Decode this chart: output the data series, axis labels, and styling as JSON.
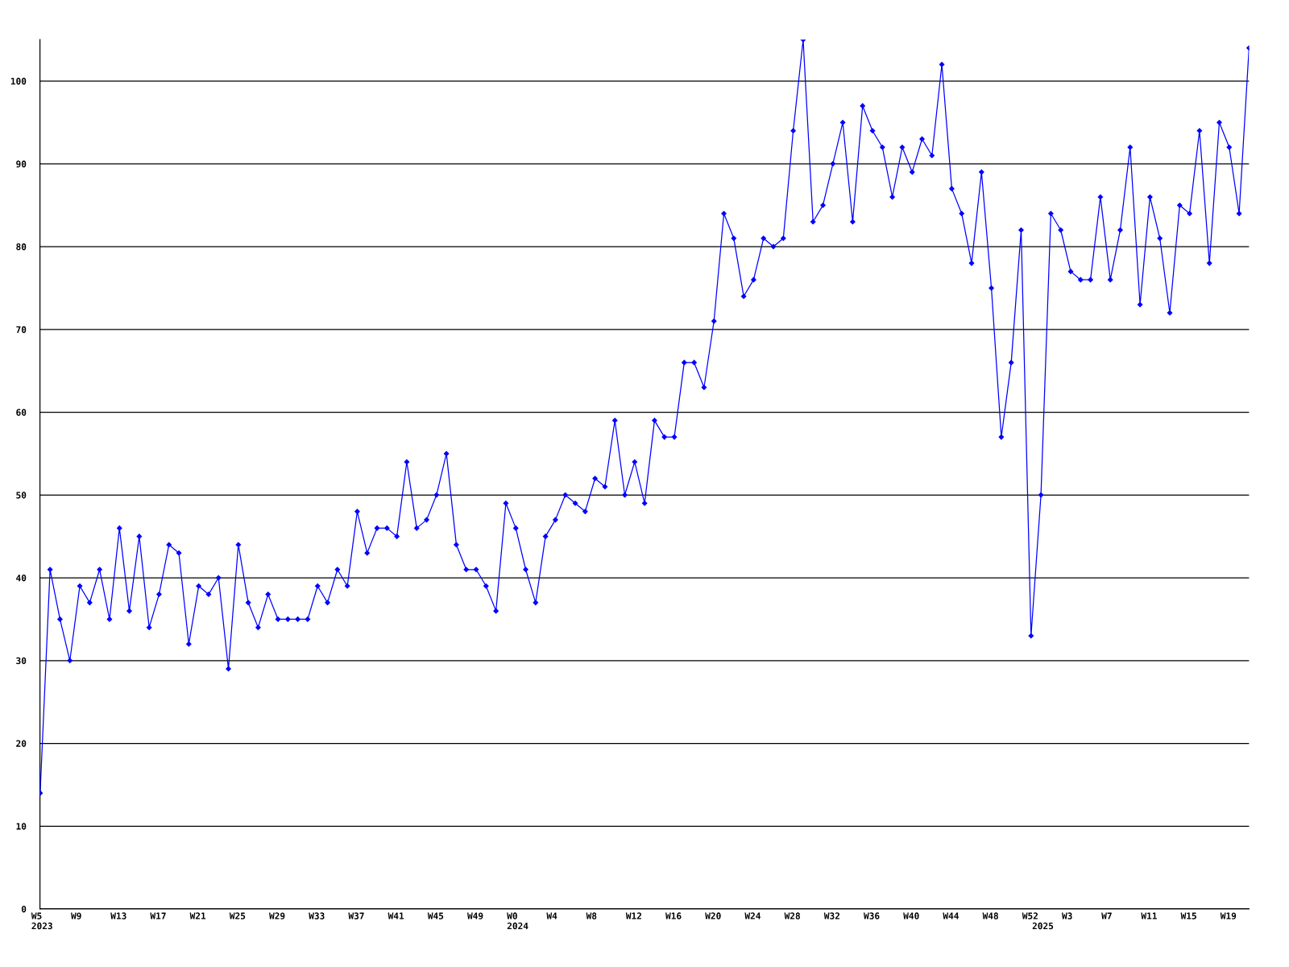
{
  "chart_data": {
    "type": "line",
    "categories": [
      "W5\n2023",
      null,
      null,
      null,
      "W9",
      null,
      null,
      null,
      "W13",
      null,
      null,
      null,
      "W17",
      null,
      null,
      null,
      "W21",
      null,
      null,
      null,
      "W25",
      null,
      null,
      null,
      "W29",
      null,
      null,
      null,
      "W33",
      null,
      null,
      null,
      "W37",
      null,
      null,
      null,
      "W41",
      null,
      null,
      null,
      "W45",
      null,
      null,
      null,
      "W49",
      null,
      null,
      null,
      "W0\n2024",
      null,
      null,
      null,
      "W4",
      null,
      null,
      null,
      "W8",
      null,
      null,
      null,
      "W12",
      null,
      null,
      null,
      "W16",
      null,
      null,
      null,
      "W20",
      null,
      null,
      null,
      "W24",
      null,
      null,
      null,
      "W28",
      null,
      null,
      null,
      "W32",
      null,
      null,
      null,
      "W36",
      null,
      null,
      null,
      "W40",
      null,
      null,
      null,
      "W44",
      null,
      null,
      null,
      "W48",
      null,
      null,
      null,
      "W52",
      "\n2025",
      null,
      null,
      "W3",
      null,
      null,
      null,
      "W7",
      null,
      null,
      null,
      "W11",
      null,
      null,
      null,
      "W15",
      null,
      null,
      null,
      "W19",
      null,
      null
    ],
    "series": [
      {
        "color": "#0000ff",
        "values": [
          14,
          41,
          35,
          30,
          39,
          37,
          41,
          35,
          46,
          36,
          45,
          34,
          38,
          44,
          43,
          32,
          39,
          38,
          40,
          29,
          44,
          37,
          34,
          38,
          35,
          35,
          35,
          35,
          39,
          37,
          41,
          39,
          48,
          43,
          46,
          46,
          45,
          54,
          46,
          47,
          50,
          55,
          44,
          41,
          41,
          39,
          36,
          49,
          46,
          41,
          37,
          45,
          47,
          50,
          49,
          48,
          52,
          51,
          59,
          50,
          54,
          49,
          59,
          57,
          57,
          66,
          66,
          63,
          71,
          84,
          81,
          74,
          76,
          81,
          80,
          81,
          94,
          105,
          83,
          85,
          90,
          95,
          83,
          97,
          94,
          92,
          86,
          92,
          89,
          93,
          91,
          102,
          87,
          84,
          78,
          89,
          75,
          57,
          66,
          82,
          33,
          50,
          84,
          82,
          77,
          76,
          76,
          86,
          76,
          82,
          92,
          73,
          86,
          81,
          72,
          85,
          84,
          94,
          78,
          95,
          92,
          84,
          104
        ]
      }
    ],
    "ylim": [
      0,
      105
    ],
    "yticks": [
      0,
      10,
      20,
      30,
      40,
      50,
      60,
      70,
      80,
      90,
      100
    ],
    "grid": "y",
    "marker": "diamond",
    "line_style": "solid"
  }
}
